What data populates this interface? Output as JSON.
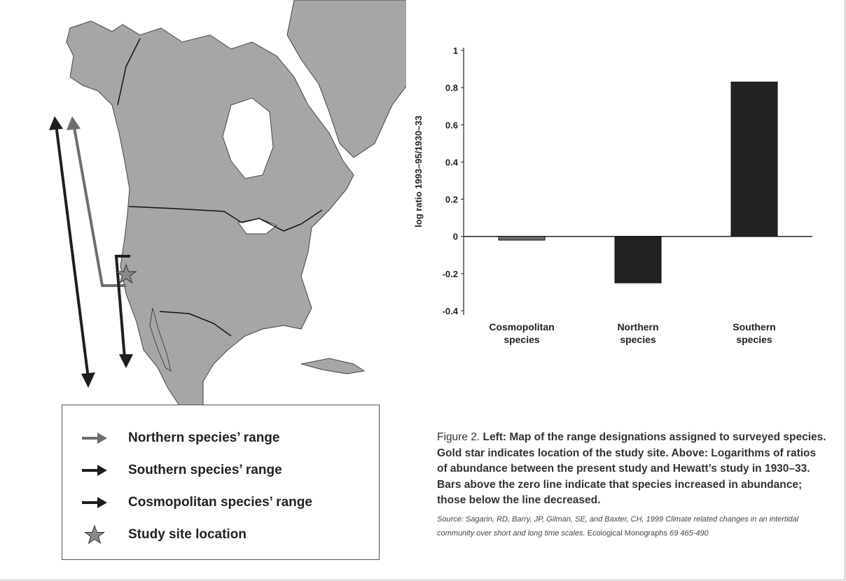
{
  "legend": {
    "items": [
      {
        "label": "Northern species’ range",
        "color": "#6e6e6e",
        "icon": "arrow-icon"
      },
      {
        "label": "Southern species’ range",
        "color": "#1e1e1e",
        "icon": "arrow-icon"
      },
      {
        "label": "Cosmopolitan species’ range",
        "color": "#1e1e1e",
        "icon": "arrow-icon"
      },
      {
        "label": "Study site location",
        "color": "#8a8a8a",
        "icon": "star-icon"
      }
    ]
  },
  "map": {
    "land_color": "#a6a6a6",
    "border_color": "#111111",
    "northern_range_color": "#6e6e6e",
    "southern_range_color": "#1e1e1e",
    "cosmopolitan_range_color": "#1e1e1e",
    "study_site_color": "#8a8a8a"
  },
  "chart_data": {
    "type": "bar",
    "categories": [
      "Cosmopolitan species",
      "Northern species",
      "Southern species"
    ],
    "category_lines": [
      [
        "Cosmopolitan",
        "species"
      ],
      [
        "Northern",
        "species"
      ],
      [
        "Southern",
        "species"
      ]
    ],
    "values": [
      -0.02,
      -0.25,
      0.83
    ],
    "ylabel": "log ratio 1993–95/1930–33",
    "ylim": [
      -0.4,
      1
    ],
    "yticks": [
      1,
      0.8,
      0.6,
      0.4,
      0.2,
      0,
      -0.2,
      -0.4
    ],
    "ytick_labels": [
      "1",
      "0.8",
      "0.6",
      "0.4",
      "0.2",
      "0",
      "-0.2",
      "-0.4"
    ],
    "bar_colors": [
      "#6e6e6e",
      "#222222",
      "#222222"
    ],
    "grid": false
  },
  "caption": {
    "lead": "Figure 2. ",
    "body": "Left: Map of the range designations assigned to surveyed species. Gold star indicates location of the study site. Above: Logarithms of ratios of abundance between the present study and Hewatt’s study in 1930–33. Bars above the zero line indicate that species increased in abundance; those below the line decreased."
  },
  "source": {
    "prefix": "Source: Sagarin, RD, Barry, JP, Gilman, SE, and Baxter, CH, 1999 Climate related changes in an intertidal community over short and long time scales.",
    "journal": " Ecological Monographs",
    "citation": " 69 465-490"
  }
}
